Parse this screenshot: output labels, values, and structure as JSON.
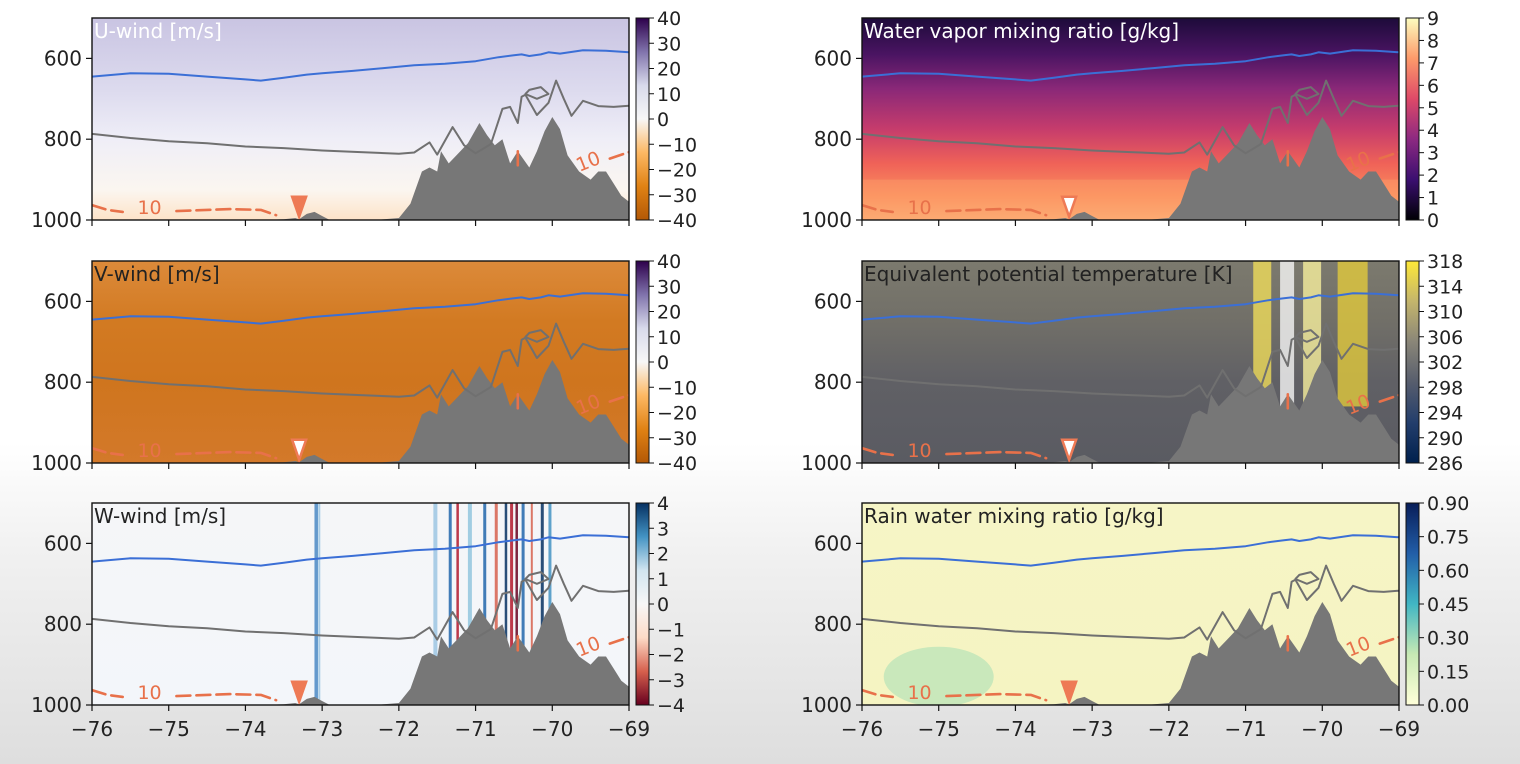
{
  "chart_data": [
    {
      "type": "heatmap",
      "title": "U-wind [m/s]",
      "title_color": "#ffffff",
      "colormap": "PuOr",
      "cbar_ticks": [
        "40",
        "30",
        "20",
        "10",
        "0",
        "−10",
        "−20",
        "−30",
        "−40"
      ],
      "ylim": [
        1000,
        500
      ],
      "yticks": [
        "600",
        "800",
        "1000"
      ],
      "xlim": [
        -76,
        -69
      ],
      "show_xticklabels": false,
      "contour_label": "10",
      "marker_filled": true
    },
    {
      "type": "heatmap",
      "title": "Water vapor mixing ratio [g/kg]",
      "title_color": "#ffffff",
      "colormap": "magma",
      "cbar_ticks": [
        "9",
        "8",
        "7",
        "6",
        "5",
        "4",
        "3",
        "2",
        "1",
        "0"
      ],
      "ylim": [
        1000,
        500
      ],
      "yticks": [
        "600",
        "800",
        "1000"
      ],
      "xlim": [
        -76,
        -69
      ],
      "show_xticklabels": false,
      "contour_label": "10",
      "marker_filled": false
    },
    {
      "type": "heatmap",
      "title": "V-wind [m/s]",
      "title_color": "#222222",
      "colormap": "PuOr",
      "cbar_ticks": [
        "40",
        "30",
        "20",
        "10",
        "0",
        "−10",
        "−20",
        "−30",
        "−40"
      ],
      "ylim": [
        1000,
        500
      ],
      "yticks": [
        "600",
        "800",
        "1000"
      ],
      "xlim": [
        -76,
        -69
      ],
      "show_xticklabels": false,
      "contour_label": "10",
      "marker_filled": false
    },
    {
      "type": "heatmap",
      "title": "Equivalent potential temperature [K]",
      "title_color": "#222222",
      "colormap": "cividis",
      "cbar_ticks": [
        "318",
        "314",
        "310",
        "306",
        "302",
        "298",
        "294",
        "290",
        "286"
      ],
      "ylim": [
        1000,
        500
      ],
      "yticks": [
        "600",
        "800",
        "1000"
      ],
      "xlim": [
        -76,
        -69
      ],
      "show_xticklabels": false,
      "contour_label": "10",
      "marker_filled": false
    },
    {
      "type": "heatmap",
      "title": "W-wind [m/s]",
      "title_color": "#222222",
      "colormap": "RdBu",
      "cbar_ticks": [
        "4",
        "3",
        "2",
        "1",
        "0",
        "−1",
        "−2",
        "−3",
        "−4"
      ],
      "ylim": [
        1000,
        500
      ],
      "yticks": [
        "600",
        "800",
        "1000"
      ],
      "xlim": [
        -76,
        -69
      ],
      "xticks": [
        "−76",
        "−75",
        "−74",
        "−73",
        "−72",
        "−71",
        "−70",
        "−69"
      ],
      "show_xticklabels": true,
      "contour_label": "10",
      "marker_filled": true
    },
    {
      "type": "heatmap",
      "title": "Rain water mixing ratio [g/kg]",
      "title_color": "#222222",
      "colormap": "YlGnBu",
      "cbar_ticks": [
        "0.90",
        "0.75",
        "0.60",
        "0.45",
        "0.30",
        "0.15",
        "0.00"
      ],
      "ylim": [
        1000,
        500
      ],
      "yticks": [
        "600",
        "800",
        "1000"
      ],
      "xlim": [
        -76,
        -69
      ],
      "xticks": [
        "−76",
        "−75",
        "−74",
        "−73",
        "−72",
        "−71",
        "−70",
        "−69"
      ],
      "show_xticklabels": true,
      "contour_label": "10",
      "marker_filled": true
    }
  ],
  "colors": {
    "terrain": "#777777",
    "blue_contour": "#3b6fd6",
    "grey_contour": "#707070",
    "temp_contour": "#e8714a",
    "marker": "#ee7a55"
  }
}
